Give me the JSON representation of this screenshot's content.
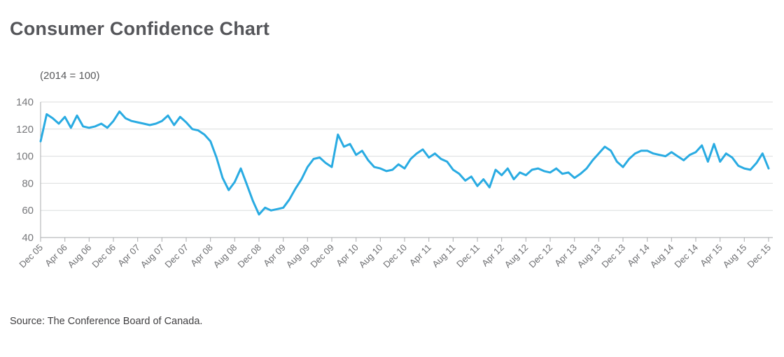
{
  "page": {
    "title": "Consumer Confidence Chart",
    "subtitle": "(2014 = 100)",
    "source": "Source: The Conference Board of Canada."
  },
  "colors": {
    "line": "#29abe2",
    "grid": "#dcddde",
    "axis": "#a9abad",
    "title_text": "#55565a",
    "tick_text": "#6d6e71",
    "source_text": "#414042"
  },
  "chart_data": {
    "type": "line",
    "title": "Consumer Confidence Chart",
    "subtitle": "(2014 = 100)",
    "source": "Source: The Conference Board of Canada.",
    "x_unit": "month",
    "x_start": "Dec 2005",
    "x_end": "Dec 2015",
    "months_per_tick": 4,
    "x_tick_labels": [
      "Dec 05",
      "Apr 06",
      "Aug 06",
      "Dec 06",
      "Apr 07",
      "Aug 07",
      "Dec 07",
      "Apr 08",
      "Aug 08",
      "Dec 08",
      "Apr 09",
      "Aug 09",
      "Dec 09",
      "Apr 10",
      "Aug 10",
      "Dec 10",
      "Apr 11",
      "Aug 11",
      "Dec 11",
      "Apr 12",
      "Aug 12",
      "Dec 12",
      "Apr 13",
      "Aug 13",
      "Dec 13",
      "Apr 14",
      "Aug 14",
      "Dec 14",
      "Apr 15",
      "Aug 15",
      "Dec 15"
    ],
    "ylim": [
      40,
      140
    ],
    "y_ticks": [
      40,
      60,
      80,
      100,
      120,
      140
    ],
    "grid": "horizontal",
    "legend": "none",
    "series": [
      {
        "name": "Consumer Confidence Index (2014 = 100)",
        "values": [
          111,
          131,
          128,
          124,
          129,
          121,
          130,
          122,
          121,
          122,
          124,
          121,
          126,
          133,
          128,
          126,
          125,
          124,
          123,
          124,
          126,
          130,
          123,
          129,
          125,
          120,
          119,
          116,
          111,
          99,
          84,
          75,
          81,
          91,
          79,
          67,
          57,
          62,
          60,
          61,
          62,
          68,
          76,
          83,
          92,
          98,
          99,
          95,
          92,
          116,
          107,
          109,
          101,
          104,
          97,
          92,
          91,
          89,
          90,
          94,
          91,
          98,
          102,
          105,
          99,
          102,
          98,
          96,
          90,
          87,
          82,
          85,
          78,
          83,
          77,
          90,
          86,
          91,
          83,
          88,
          86,
          90,
          91,
          89,
          88,
          91,
          87,
          88,
          84,
          87,
          91,
          97,
          102,
          107,
          104,
          96,
          92,
          98,
          102,
          104,
          104,
          102,
          101,
          100,
          103,
          100,
          97,
          101,
          103,
          108,
          96,
          109,
          96,
          102,
          99,
          93,
          91,
          90,
          95,
          102,
          91
        ]
      }
    ]
  }
}
